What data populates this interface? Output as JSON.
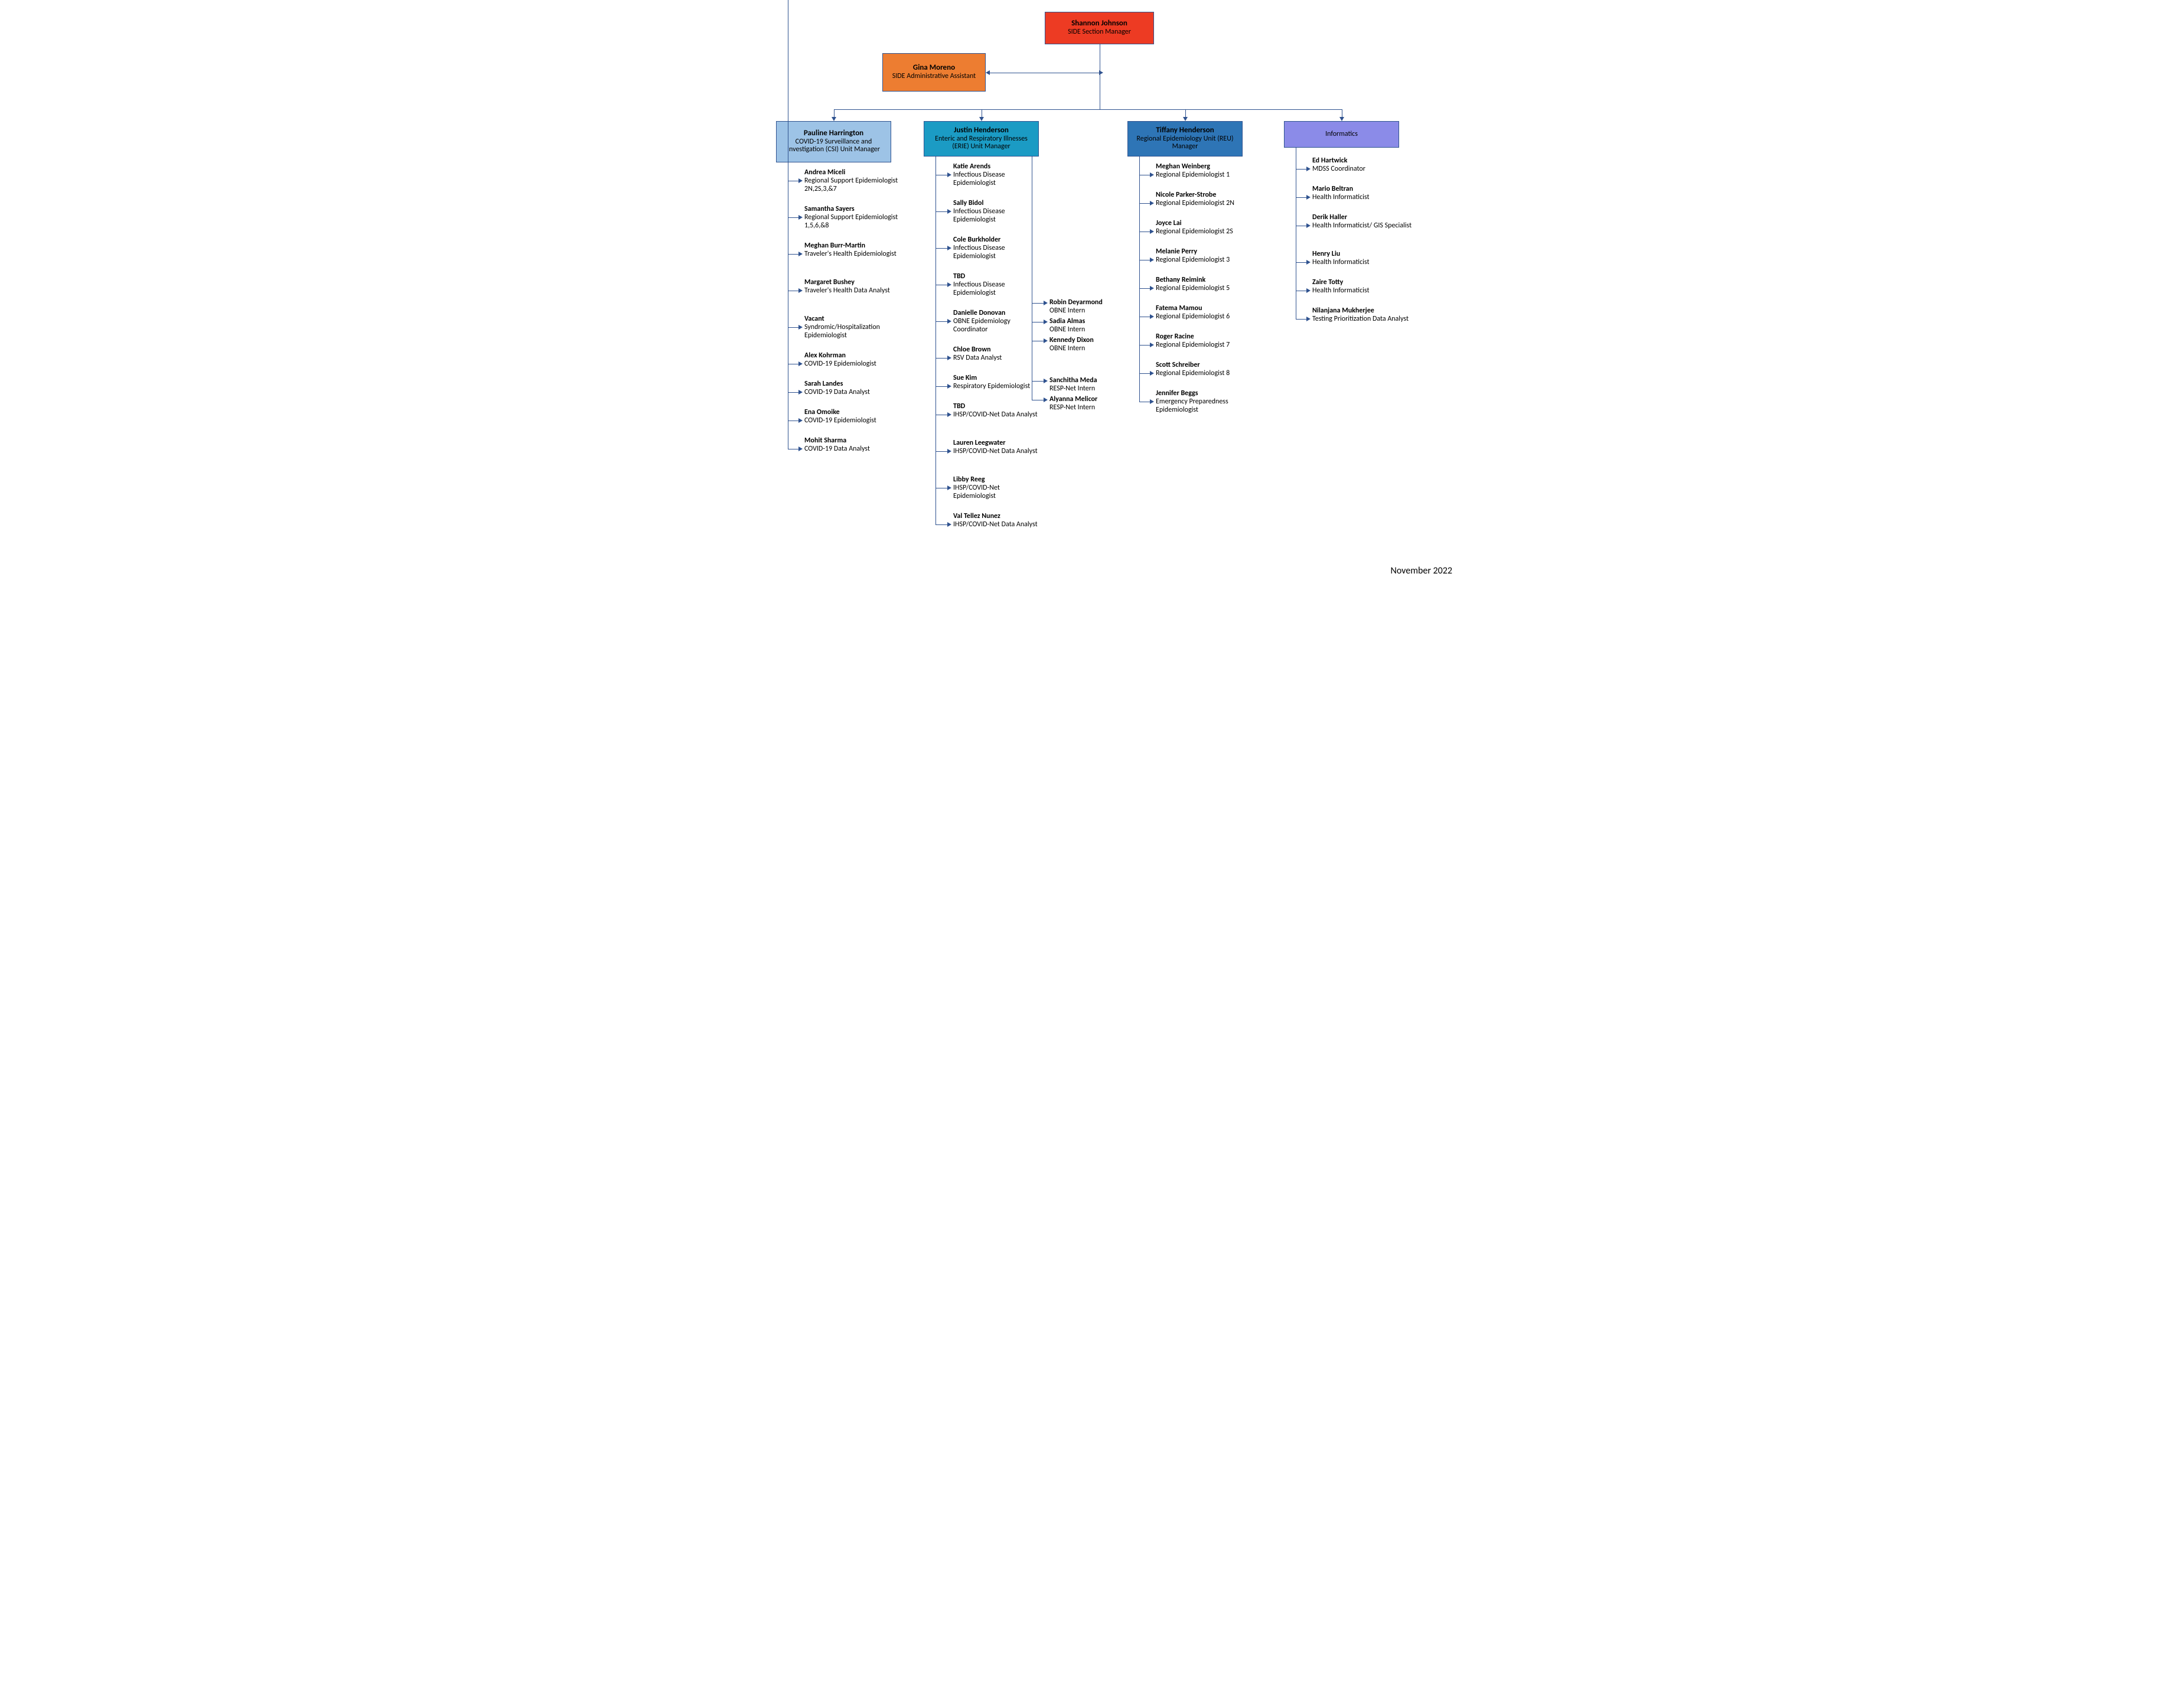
{
  "footer_date": "November 2022",
  "colors": {
    "line": "#2f528f",
    "top_manager_bg": "#ed3b23",
    "assistant_bg": "#ed7d31",
    "csi_bg": "#9dc3e6",
    "erie_bg": "#1b9bc4",
    "reu_bg": "#2e75b6",
    "informatics_bg": "#8b8be8"
  },
  "boxes": {
    "top": {
      "name": "Shannon Johnson",
      "title": "SIDE Section Manager"
    },
    "assistant": {
      "name": "Gina Moreno",
      "title": "SIDE Administrative Assistant"
    },
    "csi": {
      "name": "Pauline Harrington",
      "title": "COVID-19 Surveillance and Investigation (CSI) Unit Manager"
    },
    "erie": {
      "name": "Justin Henderson",
      "title": "Enteric and Respiratory Illnesses (ERIE) Unit Manager"
    },
    "reu": {
      "name": "Tiffany Henderson",
      "title": "Regional Epidemiology Unit (REU) Manager"
    },
    "informatics": {
      "name": "",
      "title": "Informatics"
    }
  },
  "csi_people": [
    {
      "name": "Andrea Miceli",
      "title": "Regional Support Epidemiologist 2N,2S,3,&7"
    },
    {
      "name": "Samantha Sayers",
      "title": "Regional Support Epidemiologist 1,5,6,&8"
    },
    {
      "name": "Meghan Burr-Martin",
      "title": "Traveler's Health Epidemiologist"
    },
    {
      "name": "Margaret Bushey",
      "title": "Traveler's Health Data Analyst"
    },
    {
      "name": "Vacant",
      "title": "Syndromic/Hospitalization Epidemiologist"
    },
    {
      "name": "Alex Kohrman",
      "title": "COVID-19 Epidemiologist"
    },
    {
      "name": "Sarah Landes",
      "title": "COVID-19 Data Analyst"
    },
    {
      "name": "Ena Omoike",
      "title": "COVID-19 Epidemiologist"
    },
    {
      "name": "Mohit Sharma",
      "title": "COVID-19 Data Analyst"
    }
  ],
  "erie_people": [
    {
      "name": "Katie Arends",
      "title": "Infectious Disease Epidemiologist"
    },
    {
      "name": "Sally Bidol",
      "title": "Infectious Disease Epidemiologist"
    },
    {
      "name": "Cole Burkholder",
      "title": "Infectious Disease Epidemiologist"
    },
    {
      "name": "TBD",
      "title": "Infectious Disease Epidemiologist"
    },
    {
      "name": "Danielle Donovan",
      "title": "OBNE Epidemiology Coordinator"
    },
    {
      "name": "Chloe Brown",
      "title": "RSV Data Analyst"
    },
    {
      "name": "Sue Kim",
      "title": "Respiratory Epidemiologist"
    },
    {
      "name": "TBD",
      "title": "IHSP/COVID-Net Data Analyst"
    },
    {
      "name": "Lauren Leegwater",
      "title": "IHSP/COVID-Net Data Analyst"
    },
    {
      "name": "Libby Reeg",
      "title": "IHSP/COVID-Net Epidemiologist"
    },
    {
      "name": "Val Tellez Nunez",
      "title": "IHSP/COVID-Net Data Analyst"
    }
  ],
  "obne_interns": [
    {
      "name": "Robin Deyarmond",
      "title": "OBNE Intern"
    },
    {
      "name": "Sadia Almas",
      "title": "OBNE Intern"
    },
    {
      "name": "Kennedy Dixon",
      "title": "OBNE Intern"
    }
  ],
  "resp_interns": [
    {
      "name": "Sanchitha Meda",
      "title": "RESP-Net Intern"
    },
    {
      "name": "Alyanna Melicor",
      "title": "RESP-Net Intern"
    }
  ],
  "reu_people": [
    {
      "name": "Meghan Weinberg",
      "title": "Regional Epidemiologist 1"
    },
    {
      "name": "Nicole Parker-Strobe",
      "title": "Regional Epidemiologist 2N"
    },
    {
      "name": "Joyce Lai",
      "title": "Regional Epidemiologist 2S"
    },
    {
      "name": "Melanie Perry",
      "title": "Regional Epidemiologist 3"
    },
    {
      "name": "Bethany Reimink",
      "title": "Regional Epidemiologist 5"
    },
    {
      "name": "Fatema Mamou",
      "title": "Regional Epidemiologist 6"
    },
    {
      "name": "Roger Racine",
      "title": "Regional Epidemiologist 7"
    },
    {
      "name": "Scott Schreiber",
      "title": "Regional Epidemiologist 8"
    },
    {
      "name": "Jennifer Beggs",
      "title": "Emergency Preparedness Epidemiologist"
    }
  ],
  "informatics_people": [
    {
      "name": "Ed Hartwick",
      "title": "MDSS Coordinator"
    },
    {
      "name": "Mario Beltran",
      "title": "Health Informaticist"
    },
    {
      "name": "Derik Haller",
      "title": "Health Informaticist/ GIS Specialist"
    },
    {
      "name": "Henry Liu",
      "title": "Health Informaticist"
    },
    {
      "name": "Zaire Totty",
      "title": "Health Informaticist"
    },
    {
      "name": "Nilanjana Mukherjee",
      "title": "Testing Prioritization Data Analyst"
    }
  ]
}
